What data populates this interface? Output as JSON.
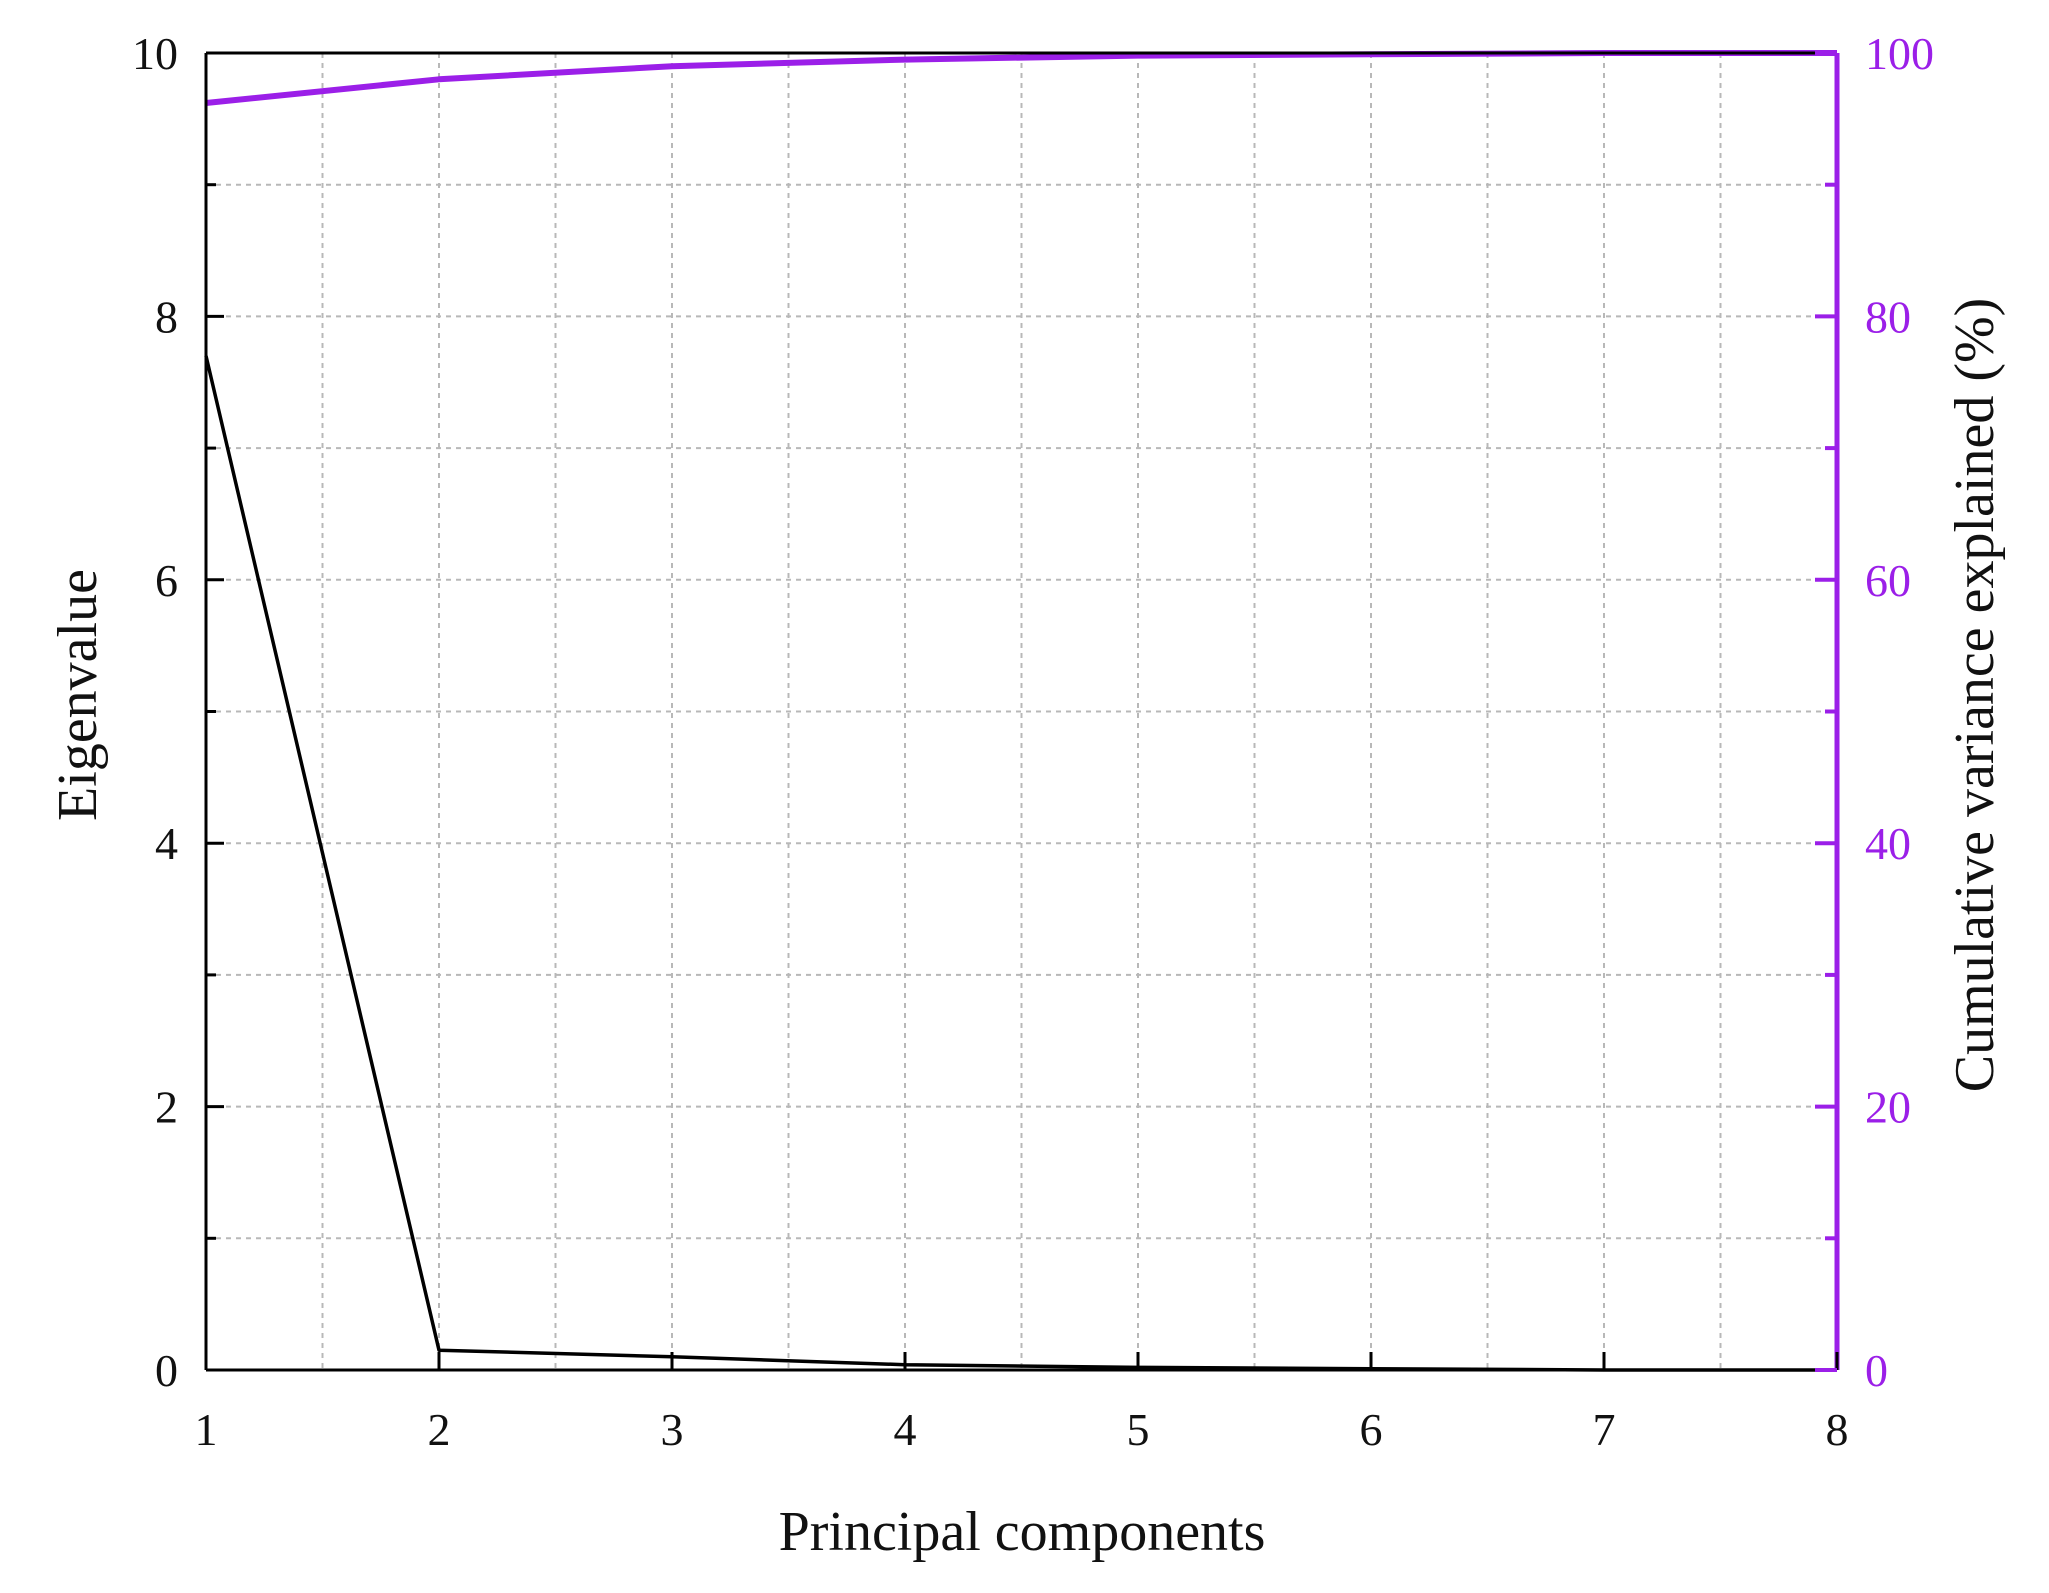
{
  "chart_data": {
    "type": "line",
    "title": "",
    "xlabel": "Principal components",
    "ylabel": "Eigenvalue",
    "y2label": "Cumulative variance explained (%)",
    "x": [
      1,
      2,
      3,
      4,
      5,
      6,
      7,
      8
    ],
    "xlim": [
      1,
      8
    ],
    "ylim": [
      0,
      10
    ],
    "y2lim": [
      0,
      100
    ],
    "x_ticks": [
      "1",
      "2",
      "3",
      "4",
      "5",
      "6",
      "7",
      "8"
    ],
    "y_ticks": [
      "0",
      "2",
      "4",
      "6",
      "8",
      "10"
    ],
    "y2_ticks": [
      "0",
      "20",
      "40",
      "60",
      "80",
      "100"
    ],
    "grid": true,
    "series": [
      {
        "axis": "left",
        "color": "#000000",
        "values": [
          7.7,
          0.15,
          0.1,
          0.04,
          0.02,
          0.01,
          0.0,
          0.0
        ]
      },
      {
        "axis": "right",
        "color": "#9b1fe8",
        "values": [
          96.2,
          98.0,
          99.0,
          99.5,
          99.8,
          99.9,
          100.0,
          100.0
        ]
      }
    ],
    "colors": {
      "left_axis": "#000000",
      "right_axis": "#9b1fe8",
      "grid": "#b8b8b8",
      "background": "#ffffff"
    }
  }
}
